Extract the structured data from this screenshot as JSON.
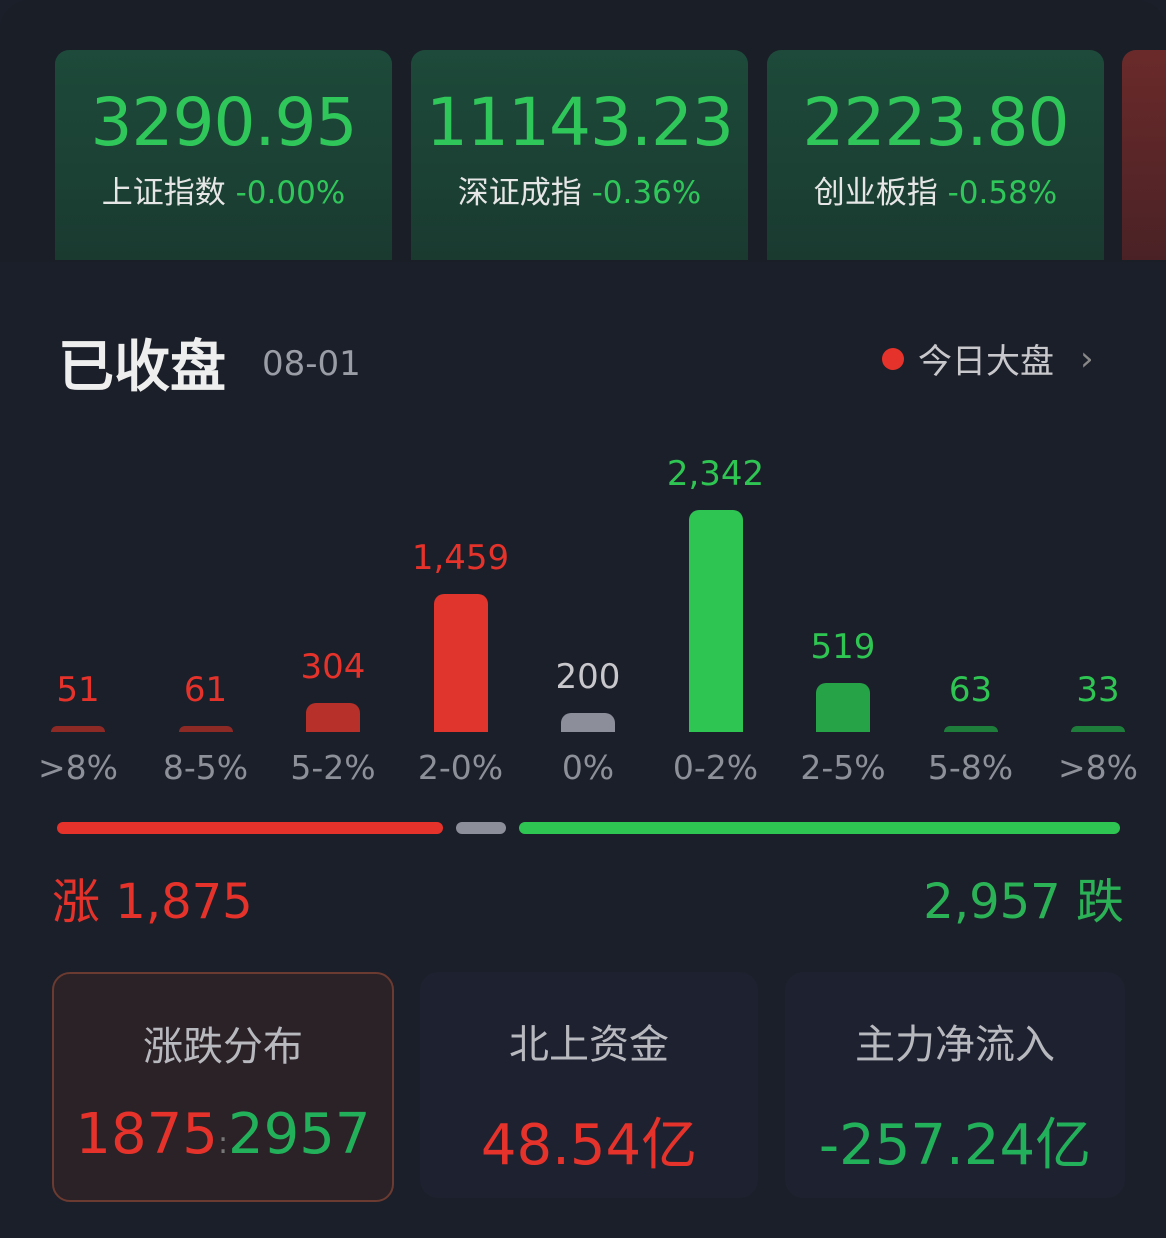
{
  "indices": [
    {
      "value": "3290.95",
      "name": "上证指数",
      "change": "-0.00%"
    },
    {
      "value": "11143.23",
      "name": "深证成指",
      "change": "-0.36%"
    },
    {
      "value": "2223.80",
      "name": "创业板指",
      "change": "-0.58%"
    }
  ],
  "header": {
    "title": "已收盘",
    "date": "08-01",
    "link": "今日大盘",
    "link_chevron": "›"
  },
  "chart_data": {
    "type": "bar",
    "categories": [
      ">8%",
      "8-5%",
      "5-2%",
      "2-0%",
      "0%",
      "0-2%",
      "2-5%",
      "5-8%",
      ">8%"
    ],
    "values": [
      51,
      61,
      304,
      1459,
      200,
      2342,
      519,
      63,
      33
    ],
    "labels": [
      "51",
      "61",
      "304",
      "1,459",
      "200",
      "2,342",
      "519",
      "63",
      "33"
    ],
    "colors": [
      "#8e2a26",
      "#8e2a26",
      "#b8302a",
      "#e0352c",
      "#8c8f99",
      "#2fc553",
      "#27a347",
      "#1f7d3c",
      "#1f7d3c"
    ]
  },
  "summary": {
    "up_label": "涨",
    "up_count": "1,875",
    "down_label": "跌",
    "down_count": "2,957",
    "up": 1875,
    "flat": 200,
    "down": 2957
  },
  "colors": {
    "up": "#e5332b",
    "down": "#2bb257",
    "flat": "#8c8f99"
  },
  "cards": [
    {
      "title": "涨跌分布",
      "up": "1875",
      "sep": ":",
      "down": "2957"
    },
    {
      "title": "北上资金",
      "value": "48.54亿"
    },
    {
      "title": "主力净流入",
      "value": "-257.24亿"
    }
  ]
}
